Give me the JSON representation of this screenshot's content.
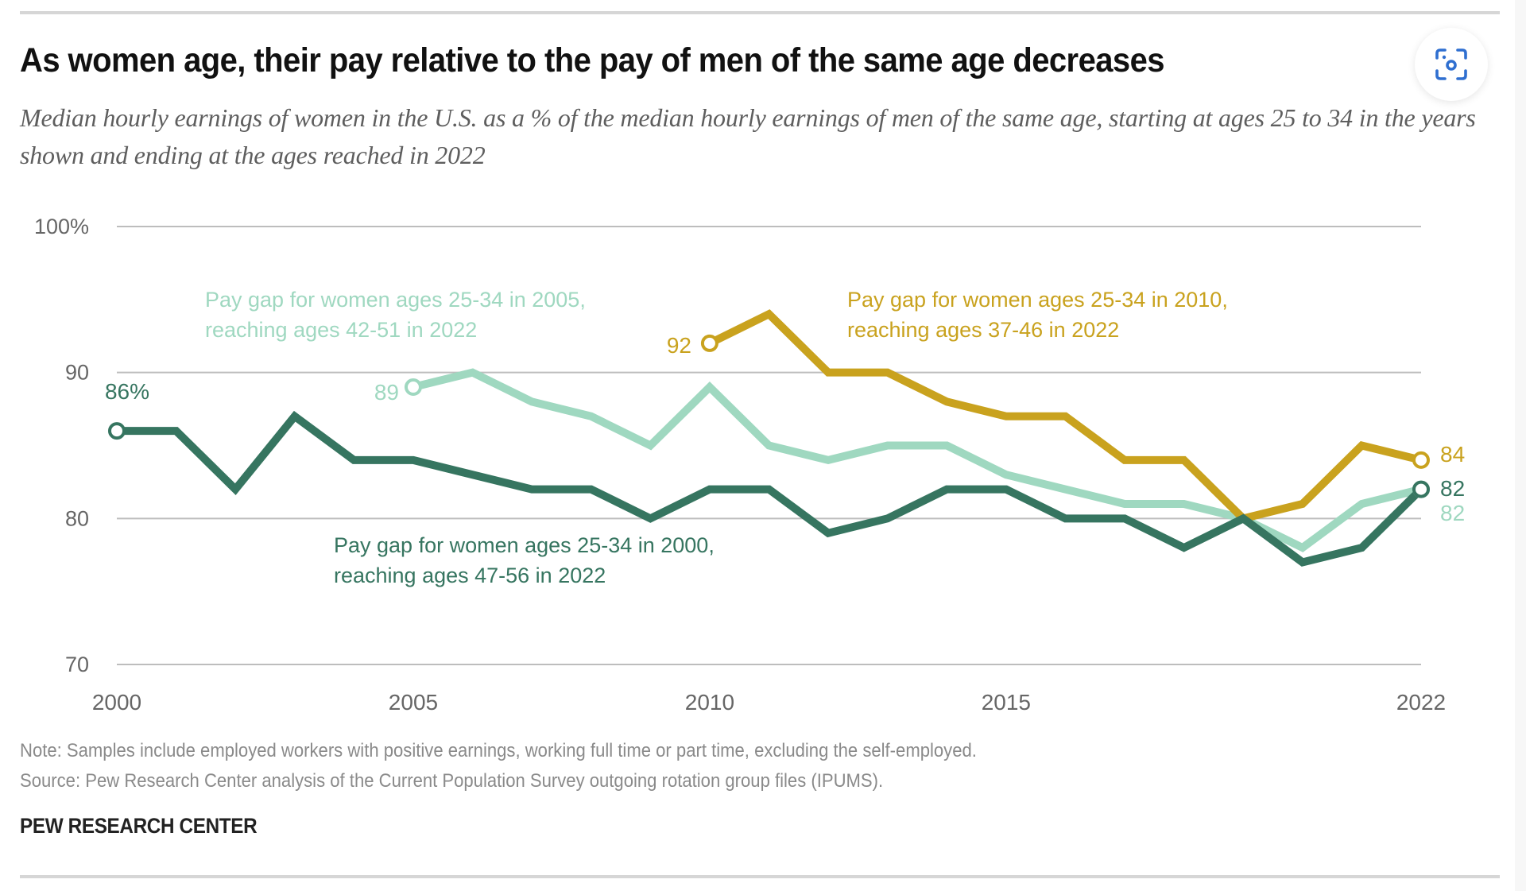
{
  "header": {
    "title": "As women age, their pay relative to the pay of men of the same age decreases",
    "subtitle": "Median hourly earnings of women in the U.S. as a % of the median hourly earnings of men of the same age, starting at ages 25 to 34 in the years shown and ending at the ages reached in 2022",
    "lens_button_label": "Visual search"
  },
  "footer": {
    "note": "Note: Samples include employed workers with positive earnings, working full time or part time, excluding the self-employed.",
    "source": "Source: Pew Research Center analysis of the Current Population Survey outgoing rotation group files (IPUMS).",
    "brand": "PEW RESEARCH CENTER"
  },
  "chart_data": {
    "type": "line",
    "title": "As women age, their pay relative to the pay of men of the same age decreases",
    "xlabel": "",
    "ylabel": "",
    "ylim": [
      70,
      100
    ],
    "xlim": [
      2000,
      2022
    ],
    "grid": true,
    "y_ticks": [
      {
        "value": 100,
        "label": "100%"
      },
      {
        "value": 90,
        "label": "90"
      },
      {
        "value": 80,
        "label": "80"
      },
      {
        "value": 70,
        "label": "70"
      }
    ],
    "x_ticks": [
      {
        "value": 2000,
        "label": "2000"
      },
      {
        "value": 2005,
        "label": "2005"
      },
      {
        "value": 2010,
        "label": "2010"
      },
      {
        "value": 2015,
        "label": "2015"
      },
      {
        "value": 2022,
        "label": "2022"
      }
    ],
    "series": [
      {
        "name": "Pay gap for women ages 25-34 in 2000, reaching ages 47-56 in 2022",
        "label_lines": [
          "Pay gap for women ages 25-34 in 2000,",
          "reaching ages 47-56 in 2022"
        ],
        "color": "#367560",
        "x": [
          2000,
          2001,
          2002,
          2003,
          2004,
          2005,
          2006,
          2007,
          2008,
          2009,
          2010,
          2011,
          2012,
          2013,
          2014,
          2015,
          2016,
          2017,
          2018,
          2019,
          2020,
          2021,
          2022
        ],
        "values": [
          86,
          86,
          82,
          87,
          84,
          84,
          83,
          82,
          82,
          80,
          82,
          82,
          79,
          80,
          82,
          82,
          80,
          80,
          78,
          80,
          77,
          78,
          82
        ],
        "start_label": "86%",
        "end_label": "82"
      },
      {
        "name": "Pay gap for women ages 25-34 in 2005, reaching ages 42-51 in 2022",
        "label_lines": [
          "Pay gap for women ages 25-34 in 2005,",
          "reaching ages 42-51 in 2022"
        ],
        "color": "#9fd8c0",
        "x": [
          2005,
          2006,
          2007,
          2008,
          2009,
          2010,
          2011,
          2012,
          2013,
          2014,
          2015,
          2016,
          2017,
          2018,
          2019,
          2020,
          2021,
          2022
        ],
        "values": [
          89,
          90,
          88,
          87,
          85,
          89,
          85,
          84,
          85,
          85,
          83,
          82,
          81,
          81,
          80,
          78,
          81,
          82
        ],
        "start_label": "89",
        "end_label": "82"
      },
      {
        "name": "Pay gap for women ages 25-34 in 2010, reaching ages 37-46 in 2022",
        "label_lines": [
          "Pay gap for women ages 25-34 in 2010,",
          "reaching ages 37-46 in 2022"
        ],
        "color": "#c9a21e",
        "x": [
          2010,
          2011,
          2012,
          2013,
          2014,
          2015,
          2016,
          2017,
          2018,
          2019,
          2020,
          2021,
          2022
        ],
        "values": [
          92,
          94,
          90,
          90,
          88,
          87,
          87,
          84,
          84,
          80,
          81,
          85,
          84
        ],
        "start_label": "92",
        "end_label": "84"
      }
    ]
  }
}
